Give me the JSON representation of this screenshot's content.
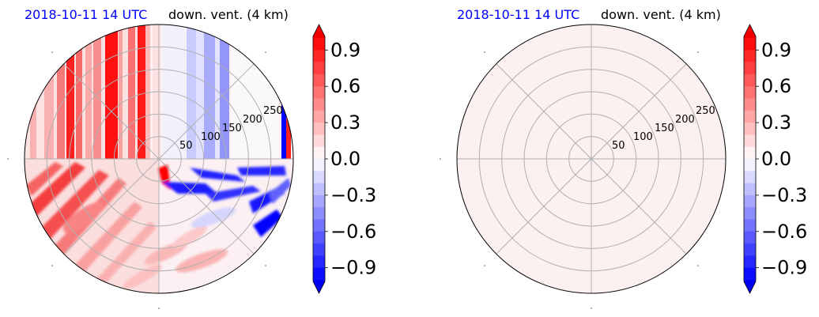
{
  "chart_data": [
    {
      "type": "heatmap",
      "projection": "polar",
      "date_label": "2018-10-11 14 UTC",
      "title": "down. vent. (4 km)",
      "r_ticks": [
        50,
        100,
        150,
        200,
        250
      ],
      "r_max": 300,
      "grid": true,
      "angular_grid_deg": 45,
      "colorbar": {
        "colormap": "bwr",
        "range": [
          -1.0,
          1.0
        ],
        "extend": "both",
        "ticks": [
          0.9,
          0.6,
          0.3,
          0.0,
          -0.3,
          -0.6,
          -0.9
        ],
        "tick_labels": [
          "0.9",
          "0.6",
          "0.3",
          "0.0",
          "−0.3",
          "−0.6",
          "−0.9"
        ]
      },
      "field_description": "vertical stripes of positive values in upper-left, negative stripes upper-right; patchy positive values lower-left, negative streaks along eastward center"
    },
    {
      "type": "heatmap",
      "projection": "polar",
      "date_label": "2018-10-11 14 UTC",
      "title": "down. vent. (4 km)",
      "r_ticks": [
        50,
        100,
        150,
        200,
        250
      ],
      "r_max": 300,
      "grid": true,
      "angular_grid_deg": 45,
      "colorbar": {
        "colormap": "bwr",
        "range": [
          -1.0,
          1.0
        ],
        "extend": "both",
        "ticks": [
          0.9,
          0.6,
          0.3,
          0.0,
          -0.3,
          -0.6,
          -0.9
        ],
        "tick_labels": [
          "0.9",
          "0.6",
          "0.3",
          "0.0",
          "−0.3",
          "−0.6",
          "−0.9"
        ]
      },
      "field_description": "uniform near-zero positive value"
    }
  ]
}
